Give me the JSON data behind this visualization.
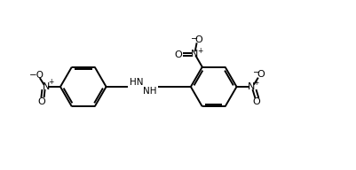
{
  "bg_color": "#ffffff",
  "line_color": "#000000",
  "text_color": "#000000",
  "bond_lw": 1.4,
  "fig_width": 4.02,
  "fig_height": 1.92,
  "dpi": 100,
  "xlim": [
    0,
    10
  ],
  "ylim": [
    0,
    4.8
  ]
}
